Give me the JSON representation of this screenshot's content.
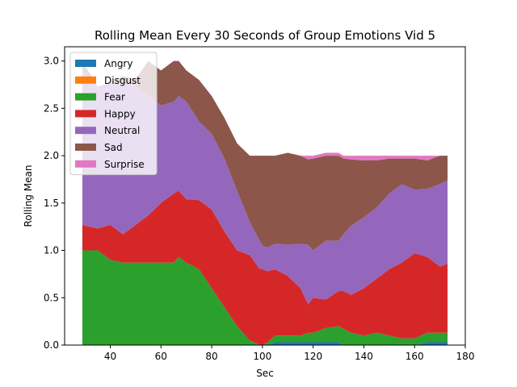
{
  "chart_data": {
    "type": "area",
    "title": "Rolling Mean Every 30 Seconds of Group Emotions Vid 5",
    "xlabel": "Sec",
    "ylabel": "Rolling Mean",
    "xlim": [
      22,
      180
    ],
    "ylim": [
      0,
      3.15
    ],
    "x_ticks": [
      40,
      60,
      80,
      100,
      120,
      140,
      160,
      180
    ],
    "y_ticks": [
      0.0,
      0.5,
      1.0,
      1.5,
      2.0,
      2.5,
      3.0
    ],
    "legend_position": "upper-left",
    "stacked": true,
    "x": [
      29,
      35,
      40,
      45,
      50,
      55,
      60,
      65,
      67,
      70,
      75,
      80,
      85,
      90,
      95,
      99,
      100,
      102,
      105,
      110,
      115,
      118,
      120,
      125,
      130,
      132,
      135,
      140,
      145,
      150,
      155,
      160,
      165,
      170,
      173
    ],
    "series": [
      {
        "name": "Angry",
        "color": "#1f77b4",
        "values": [
          0,
          0,
          0,
          0,
          0,
          0,
          0,
          0,
          0,
          0,
          0,
          0,
          0,
          0,
          0,
          0,
          0,
          0,
          0.03,
          0.03,
          0.03,
          0.03,
          0.03,
          0.03,
          0.03,
          0,
          0,
          0,
          0,
          0,
          0,
          0,
          0.03,
          0.03,
          0.03
        ]
      },
      {
        "name": "Disgust",
        "color": "#ff7f0e",
        "values": [
          0,
          0,
          0,
          0,
          0,
          0,
          0,
          0,
          0,
          0,
          0,
          0,
          0,
          0,
          0,
          0,
          0,
          0,
          0,
          0,
          0,
          0,
          0,
          0,
          0,
          0,
          0,
          0,
          0,
          0,
          0,
          0,
          0,
          0,
          0
        ]
      },
      {
        "name": "Fear",
        "color": "#2ca02c",
        "values": [
          1.0,
          1.0,
          0.9,
          0.87,
          0.87,
          0.87,
          0.87,
          0.87,
          0.93,
          0.87,
          0.8,
          0.6,
          0.4,
          0.2,
          0.05,
          0,
          0,
          0.03,
          0.07,
          0.07,
          0.07,
          0.1,
          0.1,
          0.15,
          0.17,
          0.17,
          0.13,
          0.1,
          0.13,
          0.1,
          0.07,
          0.07,
          0.1,
          0.1,
          0.1
        ]
      },
      {
        "name": "Happy",
        "color": "#d62728",
        "values": [
          0.27,
          0.23,
          0.37,
          0.3,
          0.4,
          0.5,
          0.63,
          0.73,
          0.7,
          0.67,
          0.73,
          0.83,
          0.8,
          0.8,
          0.9,
          0.8,
          0.8,
          0.75,
          0.7,
          0.63,
          0.5,
          0.3,
          0.37,
          0.3,
          0.37,
          0.4,
          0.4,
          0.5,
          0.57,
          0.7,
          0.8,
          0.9,
          0.8,
          0.7,
          0.73
        ]
      },
      {
        "name": "Neutral",
        "color": "#9467bd",
        "values": [
          1.63,
          1.5,
          1.5,
          1.6,
          1.47,
          1.27,
          1.03,
          0.97,
          1.0,
          1.03,
          0.83,
          0.8,
          0.77,
          0.63,
          0.35,
          0.3,
          0.25,
          0.25,
          0.27,
          0.33,
          0.47,
          0.63,
          0.5,
          0.62,
          0.53,
          0.6,
          0.73,
          0.75,
          0.75,
          0.8,
          0.83,
          0.67,
          0.72,
          0.87,
          0.88
        ]
      },
      {
        "name": "Sad",
        "color": "#8c564b",
        "values": [
          0.1,
          0.0,
          0.0,
          0.07,
          0.07,
          0.36,
          0.37,
          0.43,
          0.37,
          0.33,
          0.44,
          0.4,
          0.43,
          0.5,
          0.7,
          0.9,
          0.95,
          0.97,
          0.93,
          0.97,
          0.93,
          0.9,
          0.97,
          0.9,
          0.9,
          0.8,
          0.7,
          0.6,
          0.5,
          0.37,
          0.27,
          0.33,
          0.3,
          0.3,
          0.26
        ]
      },
      {
        "name": "Surprise",
        "color": "#e377c2",
        "values": [
          0,
          0,
          0,
          0,
          0,
          0,
          0,
          0,
          0,
          0,
          0,
          0,
          0,
          0,
          0,
          0,
          0,
          0,
          0,
          0,
          0,
          0.04,
          0.03,
          0.03,
          0.03,
          0.03,
          0.04,
          0.05,
          0.05,
          0.03,
          0.03,
          0.03,
          0.05,
          0.0,
          0.0
        ]
      }
    ]
  }
}
